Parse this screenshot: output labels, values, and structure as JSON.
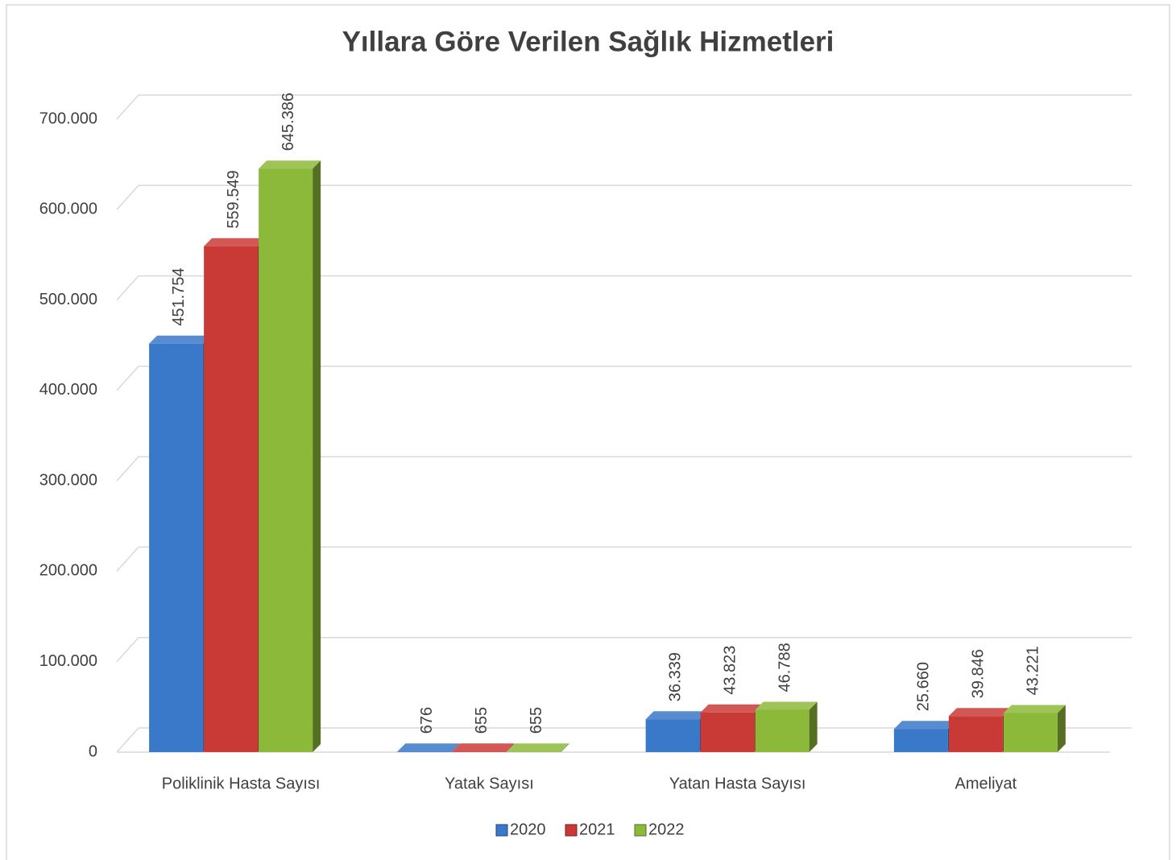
{
  "chart_data": {
    "type": "bar3d",
    "title": "Yıllara Göre Verilen Sağlık Hizmetleri",
    "categories": [
      "Poliklinik Hasta Sayısı",
      "Yatak Sayısı",
      "Yatan Hasta Sayısı",
      "Ameliyat"
    ],
    "series": [
      {
        "name": "2020",
        "color": "#3a78c9",
        "values": [
          451754,
          676,
          36339,
          25660
        ],
        "value_labels": [
          "451.754",
          "676",
          "36.339",
          "25.660"
        ]
      },
      {
        "name": "2021",
        "color": "#c93a36",
        "values": [
          559549,
          655,
          43823,
          39846
        ],
        "value_labels": [
          "559.549",
          "655",
          "43.823",
          "39.846"
        ]
      },
      {
        "name": "2022",
        "color": "#8db93a",
        "values": [
          645386,
          655,
          46788,
          43221
        ],
        "value_labels": [
          "645.386",
          "655",
          "46.788",
          "43.221"
        ]
      }
    ],
    "ylim": [
      0,
      700000
    ],
    "yticks": [
      {
        "value": 0,
        "label": "0"
      },
      {
        "value": 100000,
        "label": "100.000"
      },
      {
        "value": 200000,
        "label": "200.000"
      },
      {
        "value": 300000,
        "label": "300.000"
      },
      {
        "value": 400000,
        "label": "400.000"
      },
      {
        "value": 500000,
        "label": "500.000"
      },
      {
        "value": 600000,
        "label": "600.000"
      },
      {
        "value": 700000,
        "label": "700.000"
      }
    ],
    "grid": true,
    "legend": "bottom"
  }
}
